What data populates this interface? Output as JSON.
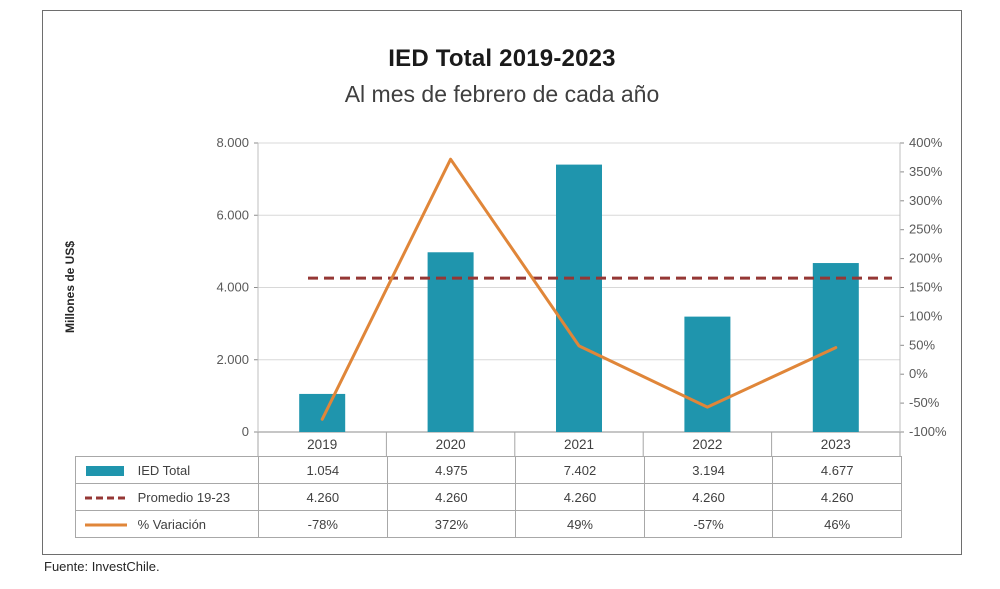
{
  "source": "Fuente: InvestChile.",
  "chart_data": {
    "type": "combo-bar-line",
    "title": "IED Total 2019-2023",
    "subtitle": "Al mes de febrero de cada año",
    "ylabel_left": "Millones de US$",
    "categories": [
      "2019",
      "2020",
      "2021",
      "2022",
      "2023"
    ],
    "series": [
      {
        "name": "IED Total",
        "type": "bar",
        "axis": "left",
        "color": "#1f95ad",
        "values": [
          1054,
          4975,
          7402,
          3194,
          4677
        ]
      },
      {
        "name": "Promedio 19-23",
        "type": "line-dashed",
        "axis": "left",
        "color": "#953735",
        "values": [
          4260,
          4260,
          4260,
          4260,
          4260
        ]
      },
      {
        "name": "% Variación",
        "type": "line",
        "axis": "right",
        "color": "#e08639",
        "values": [
          -78,
          372,
          49,
          -57,
          46
        ]
      }
    ],
    "left_axis": {
      "min": 0,
      "max": 8000,
      "step": 2000,
      "tick_labels": [
        "0",
        "2.000",
        "4.000",
        "6.000",
        "8.000"
      ]
    },
    "right_axis": {
      "min": -100,
      "max": 400,
      "step": 50,
      "tick_labels": [
        "-100%",
        "-50%",
        "0%",
        "50%",
        "100%",
        "150%",
        "200%",
        "250%",
        "300%",
        "350%",
        "400%"
      ]
    },
    "grid": true,
    "legend_position": "table-left-column"
  },
  "table": {
    "rows": [
      {
        "label": "IED Total",
        "values": [
          "1.054",
          "4.975",
          "7.402",
          "3.194",
          "4.677"
        ]
      },
      {
        "label": "Promedio 19-23",
        "values": [
          "4.260",
          "4.260",
          "4.260",
          "4.260",
          "4.260"
        ]
      },
      {
        "label": "% Variación",
        "values": [
          "-78%",
          "372%",
          "49%",
          "-57%",
          "46%"
        ]
      }
    ]
  }
}
